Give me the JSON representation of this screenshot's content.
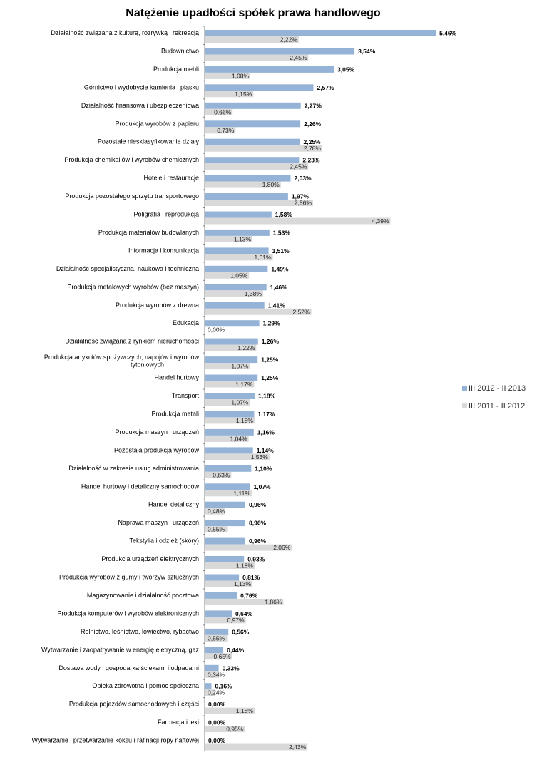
{
  "chart_data": {
    "type": "bar",
    "orientation": "horizontal",
    "title": "Natężenie upadłości spółek prawa handlowego",
    "xlim": [
      0,
      6
    ],
    "legend_position": "right",
    "series": [
      {
        "name": "III 2012 - II 2013",
        "color": "#95B3D7",
        "values": [
          5.46,
          3.54,
          3.05,
          2.57,
          2.27,
          2.26,
          2.25,
          2.23,
          2.03,
          1.97,
          1.58,
          1.53,
          1.51,
          1.49,
          1.46,
          1.41,
          1.29,
          1.26,
          1.25,
          1.25,
          1.18,
          1.17,
          1.16,
          1.14,
          1.1,
          1.07,
          0.96,
          0.96,
          0.96,
          0.93,
          0.81,
          0.76,
          0.64,
          0.56,
          0.44,
          0.33,
          0.16,
          0.0,
          0.0,
          0.0
        ],
        "labels": [
          "5,46%",
          "3,54%",
          "3,05%",
          "2,57%",
          "2,27%",
          "2,26%",
          "2,25%",
          "2,23%",
          "2,03%",
          "1,97%",
          "1,58%",
          "1,53%",
          "1,51%",
          "1,49%",
          "1,46%",
          "1,41%",
          "1,29%",
          "1,26%",
          "1,25%",
          "1,25%",
          "1,18%",
          "1,17%",
          "1,16%",
          "1,14%",
          "1,10%",
          "1,07%",
          "0,96%",
          "0,96%",
          "0,96%",
          "0,93%",
          "0,81%",
          "0,76%",
          "0,64%",
          "0,56%",
          "0,44%",
          "0,33%",
          "0,16%",
          "0,00%",
          "0,00%",
          "0,00%"
        ]
      },
      {
        "name": "III 2011 - II 2012",
        "color": "#D9D9D9",
        "values": [
          2.22,
          2.45,
          1.08,
          1.15,
          0.66,
          0.73,
          2.78,
          2.45,
          1.8,
          2.56,
          4.39,
          1.13,
          1.61,
          1.05,
          1.38,
          2.52,
          0.0,
          1.22,
          1.07,
          1.17,
          1.07,
          1.18,
          1.04,
          1.53,
          0.63,
          1.11,
          0.48,
          0.55,
          2.06,
          1.18,
          1.13,
          1.86,
          0.97,
          0.55,
          0.65,
          0.34,
          0.24,
          1.18,
          0.95,
          2.43
        ],
        "labels": [
          "2,22%",
          "2,45%",
          "1,08%",
          "1,15%",
          "0,66%",
          "0,73%",
          "2,78%",
          "2,45%",
          "1,80%",
          "2,56%",
          "4,39%",
          "1,13%",
          "1,61%",
          "1,05%",
          "1,38%",
          "2,52%",
          "0,00%",
          "1,22%",
          "1,07%",
          "1,17%",
          "1,07%",
          "1,18%",
          "1,04%",
          "1,53%",
          "0,63%",
          "1,11%",
          "0,48%",
          "0,55%",
          "2,06%",
          "1,18%",
          "1,13%",
          "1,86%",
          "0,97%",
          "0,55%",
          "0,65%",
          "0,34%",
          "0,24%",
          "1,18%",
          "0,95%",
          "2,43%"
        ]
      }
    ],
    "categories": [
      [
        "Działalność związana z kulturą, rozrywką i rekreacją"
      ],
      [
        "Budownictwo"
      ],
      [
        "Produkcja mebli"
      ],
      [
        "Górnictwo i wydobycie kamienia i piasku"
      ],
      [
        "Działalność finansowa i ubezpieczeniowa"
      ],
      [
        "Produkcja wyrobów z papieru"
      ],
      [
        "Pozostałe niesklasyfikowanie działy"
      ],
      [
        "Produkcja chemikaliów i wyrobów chemicznych"
      ],
      [
        "Hotele i restauracje"
      ],
      [
        "Produkcja pozostałego sprzętu transportowego"
      ],
      [
        "Poligrafia i reprodukcja"
      ],
      [
        "Produkcja materiałów budowlanych"
      ],
      [
        "Informacja i komunikacja"
      ],
      [
        "Działalność specjalistyczna, naukowa i techniczna"
      ],
      [
        "Produkcja metalowych wyrobów (bez maszyn)"
      ],
      [
        "Produkcja wyrobów z drewna"
      ],
      [
        "Edukacja"
      ],
      [
        "Działalność związana z rynkiem nieruchomości"
      ],
      [
        "Produkcja artykułów spożywczych, napojów i wyrobów",
        "tytoniowych"
      ],
      [
        "Handel hurtowy"
      ],
      [
        "Transport"
      ],
      [
        "Produkcja metali"
      ],
      [
        "Produkcja maszyn i urządzeń"
      ],
      [
        "Pozostała produkcja wyrobów"
      ],
      [
        "Działalność w zakresie usług administrowania"
      ],
      [
        "Handel hurtowy i detaliczny samochodów"
      ],
      [
        "Handel detaliczny"
      ],
      [
        "Naprawa maszyn i urządzeń"
      ],
      [
        "Tekstylia i odzież (skóry)"
      ],
      [
        "Produkcja urządzeń elektrycznych"
      ],
      [
        "Produkcja wyrobów z gumy i tworzyw sztucznych"
      ],
      [
        "Magazynowanie i działalność pocztowa"
      ],
      [
        "Produkcja komputerów i wyrobów elektronicznych"
      ],
      [
        "Rolnictwo, leśnictwo, łowiectwo, rybactwo"
      ],
      [
        "Wytwarzanie i zaopatrywanie w energię eletryczną, gaz"
      ],
      [
        "Dostawa wody i gospodarka ściekami i odpadami"
      ],
      [
        "Opieka zdrowotna i pomoc społeczna"
      ],
      [
        "Produkcja pojazdów samochodowych i części"
      ],
      [
        "Farmacja i leki"
      ],
      [
        "Wytwarzanie i przetwarzanie koksu i rafinacji ropy naftowej"
      ]
    ]
  }
}
